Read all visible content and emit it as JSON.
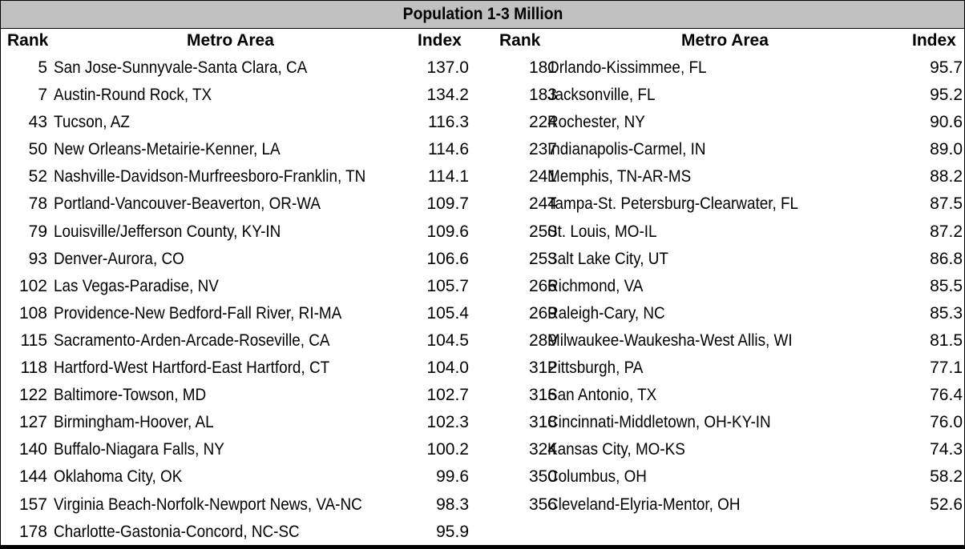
{
  "title": "Population 1-3 Million",
  "headers": {
    "rank": "Rank",
    "metro": "Metro Area",
    "index": "Index"
  },
  "left_rows": [
    {
      "rank": "5",
      "metro": "San Jose-Sunnyvale-Santa Clara, CA",
      "index": "137.0"
    },
    {
      "rank": "7",
      "metro": "Austin-Round Rock, TX",
      "index": "134.2"
    },
    {
      "rank": "43",
      "metro": "Tucson, AZ",
      "index": "116.3"
    },
    {
      "rank": "50",
      "metro": "New Orleans-Metairie-Kenner, LA",
      "index": "114.6"
    },
    {
      "rank": "52",
      "metro": "Nashville-Davidson-Murfreesboro-Franklin, TN",
      "index": "114.1"
    },
    {
      "rank": "78",
      "metro": "Portland-Vancouver-Beaverton, OR-WA",
      "index": "109.7"
    },
    {
      "rank": "79",
      "metro": "Louisville/Jefferson County, KY-IN",
      "index": "109.6"
    },
    {
      "rank": "93",
      "metro": "Denver-Aurora, CO",
      "index": "106.6"
    },
    {
      "rank": "102",
      "metro": "Las Vegas-Paradise, NV",
      "index": "105.7"
    },
    {
      "rank": "108",
      "metro": "Providence-New Bedford-Fall River, RI-MA",
      "index": "105.4"
    },
    {
      "rank": "115",
      "metro": "Sacramento-Arden-Arcade-Roseville, CA",
      "index": "104.5"
    },
    {
      "rank": "118",
      "metro": "Hartford-West Hartford-East Hartford, CT",
      "index": "104.0"
    },
    {
      "rank": "122",
      "metro": "Baltimore-Towson, MD",
      "index": "102.7"
    },
    {
      "rank": "127",
      "metro": "Birmingham-Hoover, AL",
      "index": "102.3"
    },
    {
      "rank": "140",
      "metro": "Buffalo-Niagara Falls, NY",
      "index": "100.2"
    },
    {
      "rank": "144",
      "metro": "Oklahoma City, OK",
      "index": "99.6"
    },
    {
      "rank": "157",
      "metro": "Virginia Beach-Norfolk-Newport News, VA-NC",
      "index": "98.3"
    },
    {
      "rank": "178",
      "metro": "Charlotte-Gastonia-Concord, NC-SC",
      "index": "95.9"
    }
  ],
  "right_rows": [
    {
      "rank": "181",
      "metro": "Orlando-Kissimmee, FL",
      "index": "95.7"
    },
    {
      "rank": "183",
      "metro": "Jacksonville, FL",
      "index": "95.2"
    },
    {
      "rank": "224",
      "metro": "Rochester, NY",
      "index": "90.6"
    },
    {
      "rank": "237",
      "metro": "Indianapolis-Carmel, IN",
      "index": "89.0"
    },
    {
      "rank": "241",
      "metro": "Memphis, TN-AR-MS",
      "index": "88.2"
    },
    {
      "rank": "244",
      "metro": "Tampa-St. Petersburg-Clearwater, FL",
      "index": "87.5"
    },
    {
      "rank": "250",
      "metro": "St. Louis, MO-IL",
      "index": "87.2"
    },
    {
      "rank": "253",
      "metro": "Salt Lake City, UT",
      "index": "86.8"
    },
    {
      "rank": "266",
      "metro": "Richmond, VA",
      "index": "85.5"
    },
    {
      "rank": "269",
      "metro": "Raleigh-Cary, NC",
      "index": "85.3"
    },
    {
      "rank": "289",
      "metro": "Milwaukee-Waukesha-West Allis, WI",
      "index": "81.5"
    },
    {
      "rank": "312",
      "metro": "Pittsburgh, PA",
      "index": "77.1"
    },
    {
      "rank": "316",
      "metro": "San Antonio, TX",
      "index": "76.4"
    },
    {
      "rank": "318",
      "metro": "Cincinnati-Middletown, OH-KY-IN",
      "index": "76.0"
    },
    {
      "rank": "324",
      "metro": "Kansas City, MO-KS",
      "index": "74.3"
    },
    {
      "rank": "350",
      "metro": "Columbus, OH",
      "index": "58.2"
    },
    {
      "rank": "356",
      "metro": "Cleveland-Elyria-Mentor, OH",
      "index": "52.6"
    }
  ]
}
